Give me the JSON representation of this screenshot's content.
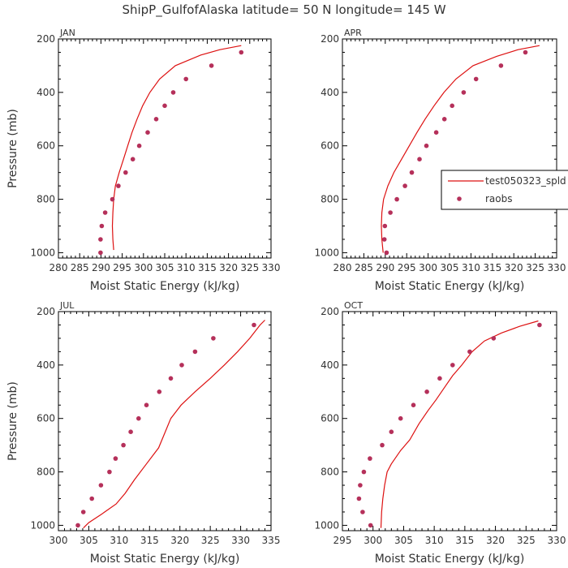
{
  "figure_title": "ShipP_GulfofAlaska   latitude= 50 N longitude= 145 W",
  "legend": {
    "line_label": "test050323_spld",
    "marker_label": "raobs",
    "line_color": "#dd1111",
    "marker_color": "#b5305a"
  },
  "chart_data": [
    {
      "type": "line",
      "panel": "JAN",
      "xlabel": "Moist Static Energy (kJ/kg)",
      "ylabel": "Pressure (mb)",
      "xlim": [
        280,
        330
      ],
      "ylim": [
        1020,
        200
      ],
      "xticks": [
        280,
        285,
        290,
        295,
        300,
        305,
        310,
        315,
        320,
        325,
        330
      ],
      "yticks": [
        200,
        400,
        600,
        800,
        1000
      ],
      "series": [
        {
          "name": "test050323_spld",
          "kind": "line",
          "points": [
            [
              293,
              990
            ],
            [
              292.8,
              950
            ],
            [
              292.7,
              900
            ],
            [
              292.8,
              850
            ],
            [
              293,
              800
            ],
            [
              293.4,
              750
            ],
            [
              294.3,
              700
            ],
            [
              295.3,
              650
            ],
            [
              296.3,
              600
            ],
            [
              297.3,
              550
            ],
            [
              298.5,
              500
            ],
            [
              299.8,
              450
            ],
            [
              301.5,
              400
            ],
            [
              303.8,
              350
            ],
            [
              307.5,
              300
            ],
            [
              313.5,
              260
            ],
            [
              318,
              240
            ],
            [
              323,
              225
            ]
          ]
        },
        {
          "name": "raobs",
          "kind": "scatter",
          "points": [
            [
              289.9,
              1000
            ],
            [
              289.9,
              950
            ],
            [
              290.2,
              900
            ],
            [
              291,
              850
            ],
            [
              292.7,
              800
            ],
            [
              294.1,
              750
            ],
            [
              295.8,
              700
            ],
            [
              297.5,
              650
            ],
            [
              299,
              600
            ],
            [
              301,
              550
            ],
            [
              303,
              500
            ],
            [
              305,
              450
            ],
            [
              307,
              400
            ],
            [
              310,
              350
            ],
            [
              316,
              300
            ],
            [
              323,
              250
            ]
          ]
        }
      ]
    },
    {
      "type": "line",
      "panel": "APR",
      "xlabel": "Moist Static Energy (kJ/kg)",
      "ylabel": "",
      "xlim": [
        280,
        330
      ],
      "ylim": [
        1020,
        200
      ],
      "xticks": [
        280,
        285,
        290,
        295,
        300,
        305,
        310,
        315,
        320,
        325,
        330
      ],
      "yticks": [
        200,
        400,
        600,
        800,
        1000
      ],
      "series": [
        {
          "name": "test050323_spld",
          "kind": "line",
          "points": [
            [
              289.5,
              1000
            ],
            [
              289.2,
              950
            ],
            [
              289.1,
              900
            ],
            [
              289.2,
              850
            ],
            [
              289.6,
              800
            ],
            [
              290.6,
              750
            ],
            [
              292,
              700
            ],
            [
              293.8,
              650
            ],
            [
              295.6,
              600
            ],
            [
              297.4,
              550
            ],
            [
              299.3,
              500
            ],
            [
              301.4,
              450
            ],
            [
              303.7,
              400
            ],
            [
              306.5,
              350
            ],
            [
              310.5,
              300
            ],
            [
              316,
              265
            ],
            [
              321,
              240
            ],
            [
              326,
              225
            ]
          ]
        },
        {
          "name": "raobs",
          "kind": "scatter",
          "points": [
            [
              290.3,
              1000
            ],
            [
              289.8,
              950
            ],
            [
              289.9,
              900
            ],
            [
              291.2,
              850
            ],
            [
              292.7,
              800
            ],
            [
              294.6,
              750
            ],
            [
              296.2,
              700
            ],
            [
              298,
              650
            ],
            [
              299.6,
              600
            ],
            [
              301.9,
              550
            ],
            [
              303.8,
              500
            ],
            [
              305.6,
              450
            ],
            [
              308.3,
              400
            ],
            [
              311.2,
              350
            ],
            [
              317,
              300
            ],
            [
              322.7,
              250
            ]
          ]
        }
      ]
    },
    {
      "type": "line",
      "panel": "JUL",
      "xlabel": "Moist Static Energy (kJ/kg)",
      "ylabel": "Pressure (mb)",
      "xlim": [
        300,
        335
      ],
      "ylim": [
        1020,
        200
      ],
      "xticks": [
        300,
        305,
        310,
        315,
        320,
        325,
        330,
        335
      ],
      "yticks": [
        200,
        400,
        600,
        800,
        1000
      ],
      "series": [
        {
          "name": "test050323_spld",
          "kind": "line",
          "points": [
            [
              304.1,
              1010
            ],
            [
              305,
              990
            ],
            [
              307,
              960
            ],
            [
              309.5,
              920
            ],
            [
              311,
              880
            ],
            [
              312.5,
              830
            ],
            [
              314.5,
              770
            ],
            [
              316.5,
              710
            ],
            [
              317.4,
              660
            ],
            [
              318.5,
              600
            ],
            [
              320.2,
              550
            ],
            [
              322.5,
              500
            ],
            [
              325,
              450
            ],
            [
              327.3,
              400
            ],
            [
              329.5,
              350
            ],
            [
              331.5,
              300
            ],
            [
              333.2,
              250
            ],
            [
              334,
              232
            ]
          ]
        },
        {
          "name": "raobs",
          "kind": "scatter",
          "points": [
            [
              303.2,
              1000
            ],
            [
              304.1,
              950
            ],
            [
              305.5,
              900
            ],
            [
              307,
              850
            ],
            [
              308.4,
              800
            ],
            [
              309.4,
              750
            ],
            [
              310.7,
              700
            ],
            [
              311.9,
              650
            ],
            [
              313.2,
              600
            ],
            [
              314.5,
              550
            ],
            [
              316.6,
              500
            ],
            [
              318.5,
              450
            ],
            [
              320.3,
              400
            ],
            [
              322.5,
              350
            ],
            [
              325.5,
              300
            ],
            [
              332.2,
              250
            ]
          ]
        }
      ]
    },
    {
      "type": "line",
      "panel": "OCT",
      "xlabel": "Moist Static Energy (kJ/kg)",
      "ylabel": "",
      "xlim": [
        295,
        330
      ],
      "ylim": [
        1020,
        200
      ],
      "xticks": [
        295,
        300,
        305,
        310,
        315,
        320,
        325,
        330
      ],
      "yticks": [
        200,
        400,
        600,
        800,
        1000
      ],
      "series": [
        {
          "name": "test050323_spld",
          "kind": "line",
          "points": [
            [
              301.3,
              1010
            ],
            [
              301.4,
              950
            ],
            [
              301.6,
              900
            ],
            [
              301.9,
              850
            ],
            [
              302.3,
              800
            ],
            [
              303,
              770
            ],
            [
              304.5,
              720
            ],
            [
              306,
              680
            ],
            [
              307.5,
              620
            ],
            [
              309,
              570
            ],
            [
              310.3,
              530
            ],
            [
              311.8,
              480
            ],
            [
              313,
              440
            ],
            [
              314.5,
              400
            ],
            [
              316.2,
              350
            ],
            [
              318.2,
              310
            ],
            [
              321,
              280
            ],
            [
              324,
              255
            ],
            [
              327,
              235
            ]
          ]
        },
        {
          "name": "raobs",
          "kind": "scatter",
          "points": [
            [
              299.6,
              1000
            ],
            [
              298.3,
              950
            ],
            [
              297.7,
              900
            ],
            [
              297.9,
              850
            ],
            [
              298.5,
              800
            ],
            [
              299.5,
              750
            ],
            [
              301.5,
              700
            ],
            [
              303,
              650
            ],
            [
              304.5,
              600
            ],
            [
              306.6,
              550
            ],
            [
              308.8,
              500
            ],
            [
              310.9,
              450
            ],
            [
              313,
              400
            ],
            [
              315.8,
              350
            ],
            [
              319.7,
              300
            ],
            [
              327.2,
              250
            ]
          ]
        }
      ]
    }
  ]
}
